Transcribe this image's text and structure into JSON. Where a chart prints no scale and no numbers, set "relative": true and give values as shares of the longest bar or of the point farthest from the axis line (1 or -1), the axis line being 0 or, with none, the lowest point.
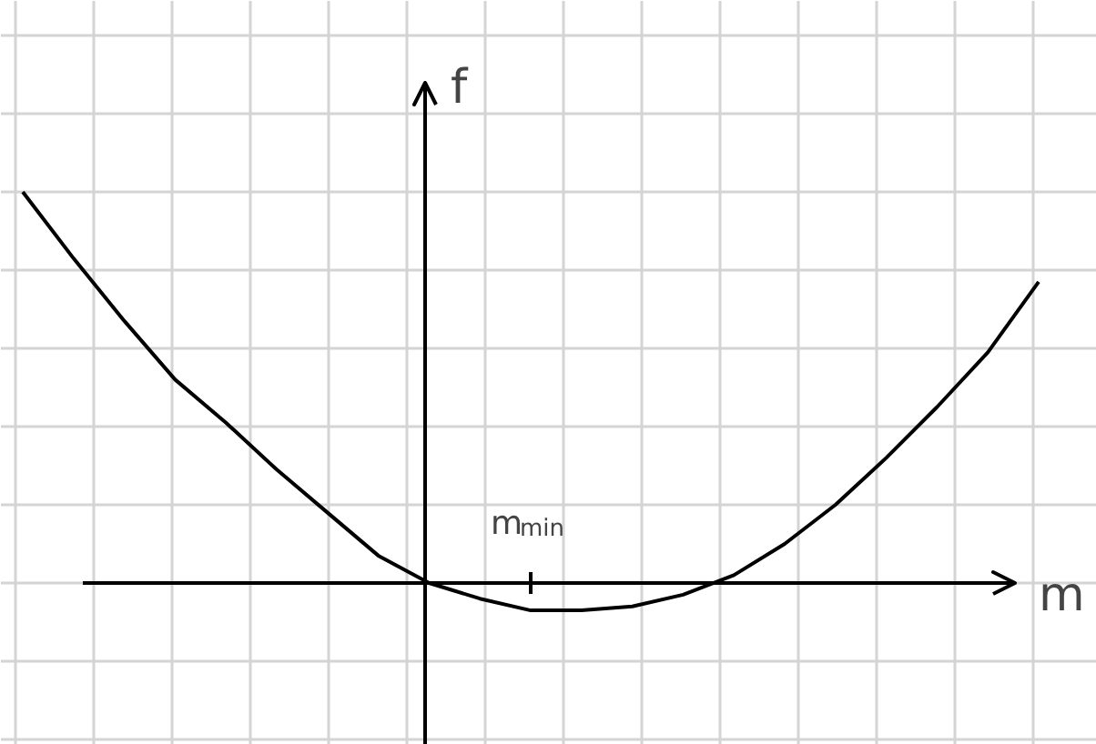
{
  "chart_data": {
    "type": "line",
    "relative": true,
    "xlabel": "m",
    "ylabel": "f",
    "annotations": [
      "m$_{min}$"
    ],
    "categories": [
      null,
      null,
      null,
      null,
      null,
      null,
      null,
      null,
      null,
      null,
      null,
      null,
      null,
      null,
      null,
      null,
      null,
      null,
      null,
      null,
      null
    ],
    "series": [
      {
        "color": "#000000",
        "values": [
          1,
          0.83,
          0.67,
          0.52,
          0.41,
          0.29,
          0.18,
          0.07,
          0,
          -0.04,
          -0.07,
          -0.07,
          -0.06,
          -0.03,
          0.02,
          0.1,
          0.2,
          0.32,
          0.45,
          0.59,
          0.77
        ]
      }
    ],
    "grid": true,
    "marker": "none",
    "line_style": "solid"
  }
}
